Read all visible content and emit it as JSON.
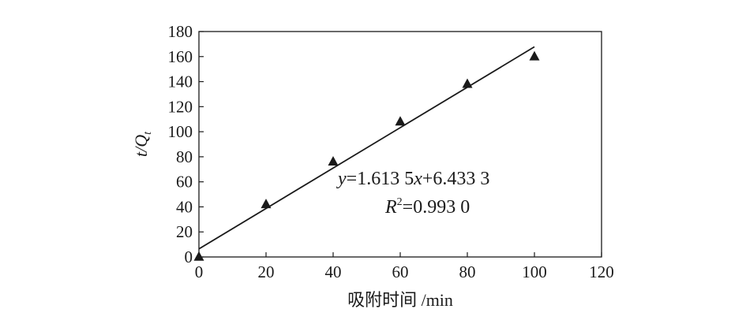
{
  "chart_data": {
    "type": "scatter",
    "xlabel": "吸附时间 /min",
    "ylabel_main": "t/Q",
    "ylabel_sub": "t",
    "xlim": [
      0,
      120
    ],
    "ylim": [
      0,
      180
    ],
    "xticks": [
      "0",
      "20",
      "40",
      "60",
      "80",
      "100",
      "120"
    ],
    "yticks": [
      "0",
      "20",
      "40",
      "60",
      "80",
      "100",
      "120",
      "140",
      "160",
      "180"
    ],
    "grid": false,
    "marker": "triangle",
    "series": [
      {
        "x": [
          0,
          20,
          40,
          60,
          80,
          100
        ],
        "y": [
          0,
          42,
          76,
          108,
          138,
          160
        ]
      }
    ],
    "fit_line": {
      "slope": 1.6135,
      "intercept": 6.4333,
      "x_range": [
        0,
        100
      ]
    },
    "annotations": {
      "equation": "y=1.613 5x+6.433 3",
      "equation_y": "y",
      "equation_mid": "=1.613 5",
      "equation_x": "x",
      "equation_end": "+6.433 3",
      "r2_R": "R",
      "r2_sup": "2",
      "r2_value": "=0.993 0"
    },
    "colors": {
      "ink": "#1a1a1a",
      "background": "#ffffff"
    }
  }
}
